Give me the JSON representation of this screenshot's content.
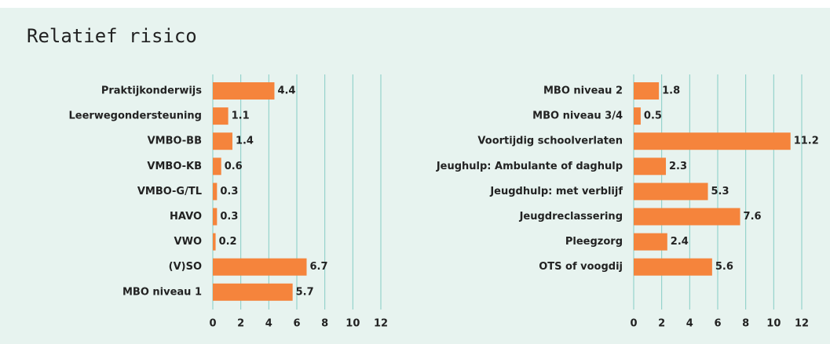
{
  "title": "Relatief risico",
  "chart_data": [
    {
      "type": "bar",
      "orientation": "horizontal",
      "color": "#f5843c",
      "grid": true,
      "categories": [
        "Praktijkonderwijs",
        "Leerwegondersteuning",
        "VMBO-BB",
        "VMBO-KB",
        "VMBO-G/TL",
        "HAVO",
        "VWO",
        "(V)SO",
        "MBO niveau 1"
      ],
      "values": [
        4.4,
        1.1,
        1.4,
        0.6,
        0.3,
        0.3,
        0.2,
        6.7,
        5.7
      ],
      "xlim": [
        0,
        12
      ],
      "xticks": [
        0,
        2,
        4,
        6,
        8,
        10,
        12
      ]
    },
    {
      "type": "bar",
      "orientation": "horizontal",
      "color": "#f5843c",
      "grid": true,
      "categories": [
        "MBO niveau 2",
        "MBO niveau 3/4",
        "Voortijdig schoolverlaten",
        "Jeughulp: Ambulante of daghulp",
        "Jeugdhulp: met verblijf",
        "Jeugdreclassering",
        "Pleegzorg",
        "OTS of voogdij"
      ],
      "values": [
        1.8,
        0.5,
        11.2,
        2.3,
        5.3,
        7.6,
        2.4,
        5.6
      ],
      "xlim": [
        0,
        12
      ],
      "xticks": [
        0,
        2,
        4,
        6,
        8,
        10,
        12
      ]
    }
  ]
}
